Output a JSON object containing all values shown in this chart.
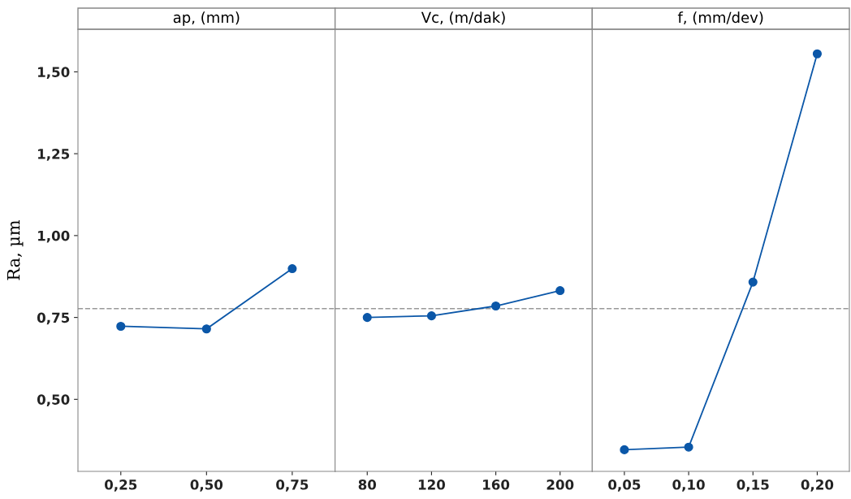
{
  "chart_data": [
    {
      "type": "line",
      "title": "ap, (mm)",
      "ylabel": "Ra, µm",
      "categories": [
        "0,25",
        "0,50",
        "0,75"
      ],
      "series": [
        {
          "color": "#0b57a8",
          "values": [
            0.723,
            0.715,
            0.899
          ]
        }
      ],
      "ylim": [
        0.28,
        1.63
      ],
      "yticks": [
        {
          "value": 0.5,
          "label": "0,50"
        },
        {
          "value": 0.75,
          "label": "0,75"
        },
        {
          "value": 1.0,
          "label": "1,00"
        },
        {
          "value": 1.25,
          "label": "1,25"
        },
        {
          "value": 1.5,
          "label": "1,50"
        }
      ],
      "ref_lines": [
        {
          "axis": "y",
          "value": 0.777,
          "color": "#999999",
          "line_style": "dashed"
        }
      ],
      "marker": "circle",
      "line_style": "solid",
      "grid": false,
      "legend": false
    },
    {
      "type": "line",
      "title": "Vc, (m/dak)",
      "categories": [
        "80",
        "120",
        "160",
        "200"
      ],
      "series": [
        {
          "color": "#0b57a8",
          "values": [
            0.75,
            0.755,
            0.785,
            0.832
          ]
        }
      ],
      "ylim": [
        0.28,
        1.63
      ],
      "tick_labels": "x",
      "ref_lines": [
        {
          "axis": "y",
          "value": 0.777,
          "color": "#999999",
          "line_style": "dashed"
        }
      ],
      "marker": "circle",
      "line_style": "solid",
      "grid": false,
      "legend": false
    },
    {
      "type": "line",
      "title": "f, (mm/dev)",
      "categories": [
        "0,05",
        "0,10",
        "0,15",
        "0,20"
      ],
      "series": [
        {
          "color": "#0b57a8",
          "values": [
            0.346,
            0.354,
            0.858,
            1.555
          ]
        }
      ],
      "ylim": [
        0.28,
        1.63
      ],
      "tick_labels": "x",
      "ref_lines": [
        {
          "axis": "y",
          "value": 0.777,
          "color": "#999999",
          "line_style": "dashed"
        }
      ],
      "marker": "circle",
      "line_style": "solid",
      "grid": false,
      "legend": false
    }
  ]
}
